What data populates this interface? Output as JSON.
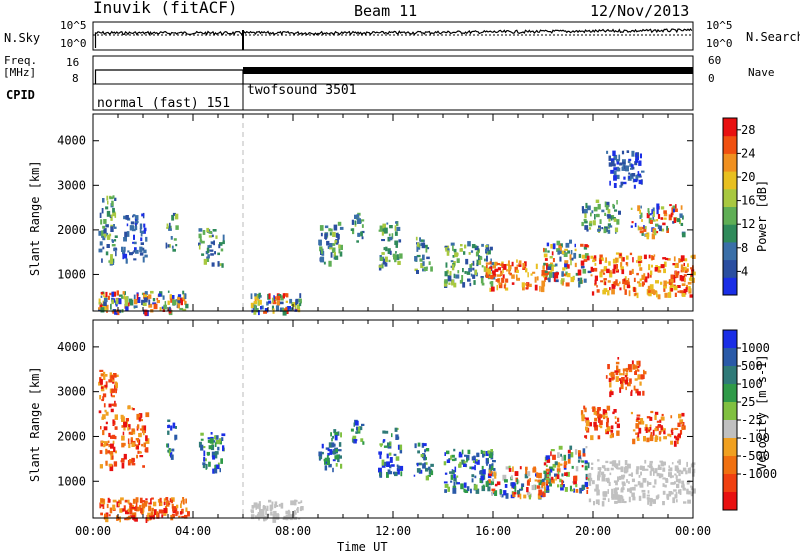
{
  "header": {
    "station": "Inuvik (fitACF)",
    "beam": "Beam 11",
    "date": "12/Nov/2013"
  },
  "top_panels": {
    "noise_left_label": "N.Sky",
    "noise_right_label": "N.Search",
    "noise_left_ticks": [
      "10^5",
      "10^0"
    ],
    "noise_right_ticks": [
      "10^5",
      "10^0"
    ],
    "freq_label": "Freq.",
    "freq_unit": "[MHz]",
    "freq_ticks": [
      "16",
      "8"
    ],
    "nave_label": "Nave",
    "nave_ticks": [
      "60",
      "0"
    ],
    "cpid_label": "CPID",
    "cpid_programs": [
      {
        "name": "normal (fast) 151",
        "start_hour": 0,
        "end_hour": 6
      },
      {
        "name": "twofsound 3501",
        "start_hour": 6,
        "end_hour": 24
      }
    ]
  },
  "chart_data": [
    {
      "type": "heatmap",
      "title": "",
      "ylabel": "Slant Range [km]",
      "xlabel": "",
      "colorbar_label": "Power [dB]",
      "colorbar_ticks": [
        4,
        8,
        12,
        16,
        20,
        24,
        28
      ],
      "colorbar_range": [
        0,
        30
      ],
      "xlim_hours": [
        0,
        24
      ],
      "ylim_km": [
        180,
        4600
      ],
      "yticks": [
        1000,
        2000,
        3000,
        4000
      ],
      "dashed_marker_hour": 6,
      "echo_regions": [
        {
          "t0": 0.2,
          "t1": 0.9,
          "r0": 1250,
          "r1": 2800,
          "level": "mid"
        },
        {
          "t0": 1.1,
          "t1": 2.1,
          "r0": 1350,
          "r1": 2400,
          "level": "low"
        },
        {
          "t0": 2.9,
          "t1": 3.3,
          "r0": 1550,
          "r1": 2400,
          "level": "mid"
        },
        {
          "t0": 4.2,
          "t1": 5.2,
          "r0": 1250,
          "r1": 2050,
          "level": "mid"
        },
        {
          "t0": 0.2,
          "t1": 3.8,
          "r0": 180,
          "r1": 650,
          "level": "mixed"
        },
        {
          "t0": 6.3,
          "t1": 8.3,
          "r0": 180,
          "r1": 600,
          "level": "mixed"
        },
        {
          "t0": 9.0,
          "t1": 9.9,
          "r0": 1250,
          "r1": 2200,
          "level": "mid"
        },
        {
          "t0": 10.3,
          "t1": 10.8,
          "r0": 1750,
          "r1": 2400,
          "level": "mid"
        },
        {
          "t0": 11.4,
          "t1": 12.3,
          "r0": 1200,
          "r1": 2200,
          "level": "mid"
        },
        {
          "t0": 12.8,
          "t1": 13.5,
          "r0": 1100,
          "r1": 1900,
          "level": "mid"
        },
        {
          "t0": 14.0,
          "t1": 16.0,
          "r0": 800,
          "r1": 1750,
          "level": "mid"
        },
        {
          "t0": 15.7,
          "t1": 18.3,
          "r0": 700,
          "r1": 1350,
          "level": "high"
        },
        {
          "t0": 18.0,
          "t1": 19.8,
          "r0": 800,
          "r1": 1800,
          "level": "mixed"
        },
        {
          "t0": 19.8,
          "t1": 24.0,
          "r0": 550,
          "r1": 1500,
          "level": "high"
        },
        {
          "t0": 19.5,
          "t1": 21.0,
          "r0": 2000,
          "r1": 2700,
          "level": "mid"
        },
        {
          "t0": 21.5,
          "t1": 23.6,
          "r0": 1900,
          "r1": 2600,
          "level": "mixed"
        },
        {
          "t0": 20.5,
          "t1": 22.0,
          "r0": 3000,
          "r1": 3800,
          "level": "low"
        }
      ]
    },
    {
      "type": "heatmap",
      "title": "",
      "ylabel": "Slant Range [km]",
      "xlabel": "Time UT",
      "colorbar_label": "Velocity [m s-1]",
      "colorbar_ticks": [
        "1000",
        "500",
        "100",
        "25",
        "-25",
        "-100",
        "-500",
        "-1000"
      ],
      "xlim_hours": [
        0,
        24
      ],
      "xticks": [
        "00:00",
        "04:00",
        "08:00",
        "12:00",
        "16:00",
        "20:00",
        "00:00"
      ],
      "ylim_km": [
        180,
        4600
      ],
      "yticks": [
        1000,
        2000,
        3000,
        4000
      ],
      "dashed_marker_hour": 6,
      "echo_regions": [
        {
          "t0": 0.2,
          "t1": 0.9,
          "r0": 1250,
          "r1": 3500,
          "level": "neg"
        },
        {
          "t0": 1.1,
          "t1": 2.1,
          "r0": 1350,
          "r1": 2700,
          "level": "neg"
        },
        {
          "t0": 2.9,
          "t1": 3.3,
          "r0": 1550,
          "r1": 2400,
          "level": "pos"
        },
        {
          "t0": 4.2,
          "t1": 5.2,
          "r0": 1250,
          "r1": 2100,
          "level": "pos"
        },
        {
          "t0": 0.2,
          "t1": 3.8,
          "r0": 180,
          "r1": 650,
          "level": "neg"
        },
        {
          "t0": 6.3,
          "t1": 8.3,
          "r0": 180,
          "r1": 600,
          "level": "zero"
        },
        {
          "t0": 9.0,
          "t1": 9.9,
          "r0": 1250,
          "r1": 2200,
          "level": "pos"
        },
        {
          "t0": 10.3,
          "t1": 10.8,
          "r0": 1750,
          "r1": 2400,
          "level": "pos"
        },
        {
          "t0": 11.4,
          "t1": 12.3,
          "r0": 1200,
          "r1": 2200,
          "level": "pos"
        },
        {
          "t0": 12.8,
          "t1": 13.5,
          "r0": 1100,
          "r1": 1900,
          "level": "pos"
        },
        {
          "t0": 14.0,
          "t1": 16.0,
          "r0": 800,
          "r1": 1750,
          "level": "pos"
        },
        {
          "t0": 15.7,
          "t1": 18.3,
          "r0": 700,
          "r1": 1350,
          "level": "mixed"
        },
        {
          "t0": 18.0,
          "t1": 19.8,
          "r0": 800,
          "r1": 1800,
          "level": "mixed"
        },
        {
          "t0": 19.8,
          "t1": 24.0,
          "r0": 550,
          "r1": 1500,
          "level": "zero"
        },
        {
          "t0": 19.5,
          "t1": 21.0,
          "r0": 2000,
          "r1": 2700,
          "level": "neg"
        },
        {
          "t0": 21.5,
          "t1": 23.6,
          "r0": 1900,
          "r1": 2600,
          "level": "neg"
        },
        {
          "t0": 20.5,
          "t1": 22.0,
          "r0": 3000,
          "r1": 3800,
          "level": "neg"
        }
      ]
    }
  ],
  "colors": {
    "power_scale": [
      "#1a2ee6",
      "#2a4ea0",
      "#3a6fa8",
      "#2f8a5a",
      "#5fae55",
      "#a8c840",
      "#e8c020",
      "#f09020",
      "#f05010",
      "#e81010"
    ],
    "velocity_scale": [
      "#1a2ee6",
      "#2a5aa8",
      "#2f7a78",
      "#2f9a48",
      "#80c040",
      "#c0c0c0",
      "#f0a020",
      "#f07010",
      "#f04010",
      "#e81010"
    ]
  }
}
